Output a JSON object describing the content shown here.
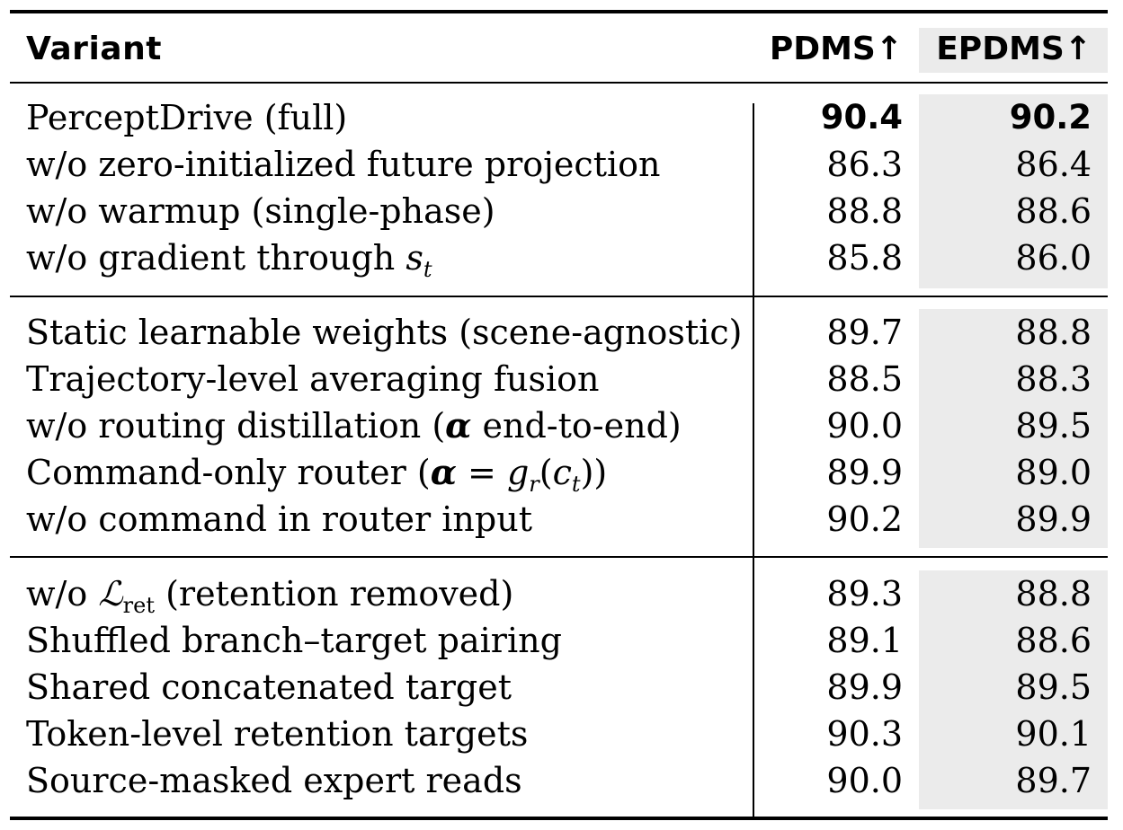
{
  "table": {
    "headers": {
      "variant": "Variant",
      "pdms": "PDMS↑",
      "epdms": "EPDMS↑"
    },
    "groups": [
      {
        "rows": [
          {
            "variant": "PerceptDrive (full)",
            "pdms": "90.4",
            "epdms": "90.2",
            "bold": true
          },
          {
            "variant": "w/o zero-initialized future projection",
            "pdms": "86.3",
            "epdms": "86.4"
          },
          {
            "variant": "w/o warmup (single-phase)",
            "pdms": "88.8",
            "epdms": "88.6"
          },
          {
            "variant_prefix": "w/o gradient through ",
            "variant_math": "s",
            "variant_sub": "t",
            "pdms": "85.8",
            "epdms": "86.0"
          }
        ]
      },
      {
        "rows": [
          {
            "variant": "Static learnable weights (scene-agnostic)",
            "pdms": "89.7",
            "epdms": "88.8"
          },
          {
            "variant": "Trajectory-level averaging fusion",
            "pdms": "88.5",
            "epdms": "88.3"
          },
          {
            "variant_prefix": "w/o routing distillation (",
            "variant_sym": "α",
            "variant_suffix": " end-to-end)",
            "pdms": "90.0",
            "epdms": "89.5"
          },
          {
            "variant_prefix": "Command-only router (",
            "variant_sym": "α",
            "variant_eq": " = ",
            "variant_g": "g",
            "variant_gsub": "r",
            "variant_arg": "(",
            "variant_c": "c",
            "variant_csub": "t",
            "variant_end": "))",
            "pdms": "89.9",
            "epdms": "89.0"
          },
          {
            "variant": "w/o command in router input",
            "pdms": "90.2",
            "epdms": "89.9"
          }
        ]
      },
      {
        "rows": [
          {
            "variant_prefix": "w/o ",
            "variant_math": "ℒ",
            "variant_sub": "ret",
            "variant_suffix": " (retention removed)",
            "pdms": "89.3",
            "epdms": "88.8"
          },
          {
            "variant": "Shuffled branch–target pairing",
            "pdms": "89.1",
            "epdms": "88.6"
          },
          {
            "variant": "Shared concatenated target",
            "pdms": "89.9",
            "epdms": "89.5"
          },
          {
            "variant": "Token-level retention targets",
            "pdms": "90.3",
            "epdms": "90.1"
          },
          {
            "variant": "Source-masked expert reads",
            "pdms": "90.0",
            "epdms": "89.7"
          }
        ]
      }
    ]
  }
}
